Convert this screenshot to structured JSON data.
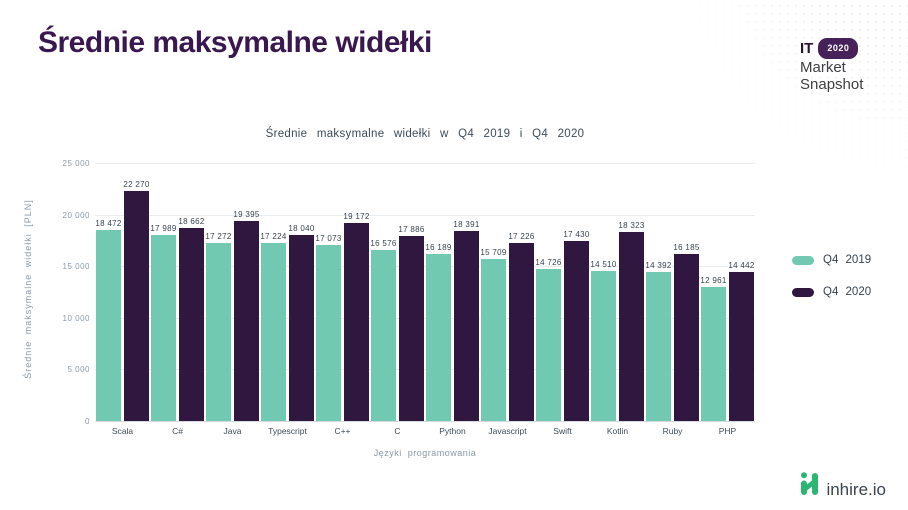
{
  "page": {
    "title": "Średnie maksymalne widełki"
  },
  "brand": {
    "it": "IT",
    "year_badge": "2020",
    "line1": "Market",
    "line2": "Snapshot"
  },
  "chart_data": {
    "type": "bar",
    "title": "Średnie maksymalne widełki w Q4 2019 i Q4 2020",
    "xlabel": "Języki programowania",
    "ylabel": "Średnie maksymalne widełki [PLN]",
    "ylim": [
      0,
      25000
    ],
    "ytick_step": 5000,
    "ytick_labels": [
      "25 000",
      "20 000",
      "15 000",
      "10 000",
      "5 000",
      "0"
    ],
    "grid": true,
    "legend_position": "right",
    "categories": [
      "Scala",
      "C#",
      "Java",
      "Typescript",
      "C++",
      "C",
      "Python",
      "Javascript",
      "Swift",
      "Kotlin",
      "Ruby",
      "PHP"
    ],
    "series": [
      {
        "name": "Q4 2019",
        "color": "#72C9B2",
        "values": [
          18472,
          17989,
          17272,
          17224,
          17073,
          16576,
          16189,
          15709,
          14726,
          14510,
          14392,
          12961
        ]
      },
      {
        "name": "Q4 2020",
        "color": "#2F1740",
        "values": [
          22270,
          18662,
          19395,
          18040,
          19172,
          17886,
          18391,
          17226,
          17430,
          18323,
          16185,
          14442
        ]
      }
    ]
  },
  "footer": {
    "logo_text": "inhire.io"
  },
  "colors": {
    "title_purple": "#38184E",
    "teal": "#72C9B2",
    "dark_purple": "#2F1740",
    "axis_gray": "#8A99A7",
    "text_dark": "#37434E",
    "badge_purple": "#47215A",
    "logo_green": "#2BB673"
  }
}
